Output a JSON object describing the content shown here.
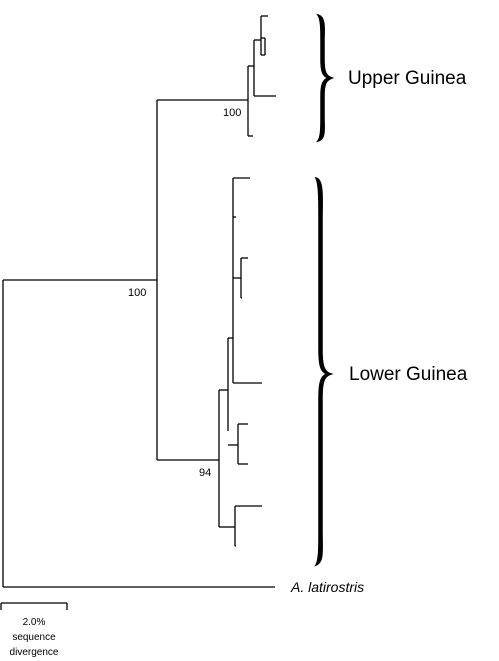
{
  "clades": {
    "upper": {
      "label": "Upper Guinea",
      "support": "100"
    },
    "lower": {
      "label": "Lower Guinea",
      "support": "94"
    }
  },
  "ingroup_support": "100",
  "outgroup": {
    "label": "A. latirostris"
  },
  "scale_bar": {
    "value": "2.0%",
    "line1": "sequence",
    "line2": "divergence"
  },
  "colors": {
    "line": "#000000",
    "background": "#ffffff"
  }
}
